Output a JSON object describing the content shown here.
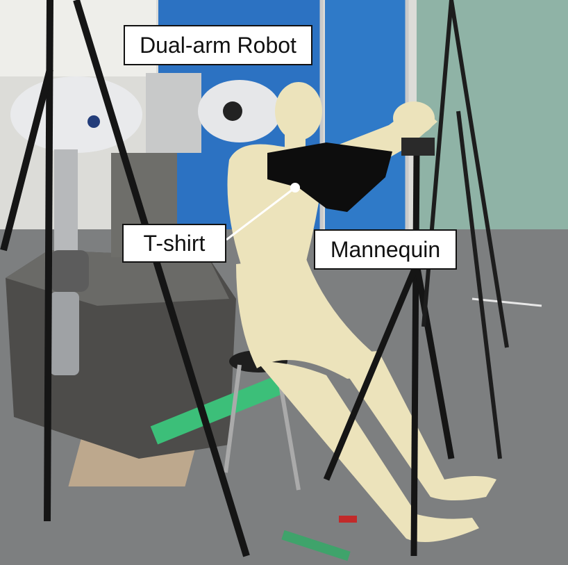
{
  "labels": {
    "robot": "Dual-arm Robot",
    "tshirt": "T-shirt",
    "mannequin": "Mannequin"
  },
  "colors": {
    "label_background": "#ffffff",
    "label_border": "#111111",
    "pointer_line": "#ffffff",
    "mannequin_skin": "#ece3bb",
    "tshirt": "#0d0d0d",
    "robot_base": "#4d4c4a",
    "partition": "#2c72c2",
    "floor": "#7d7f80"
  }
}
